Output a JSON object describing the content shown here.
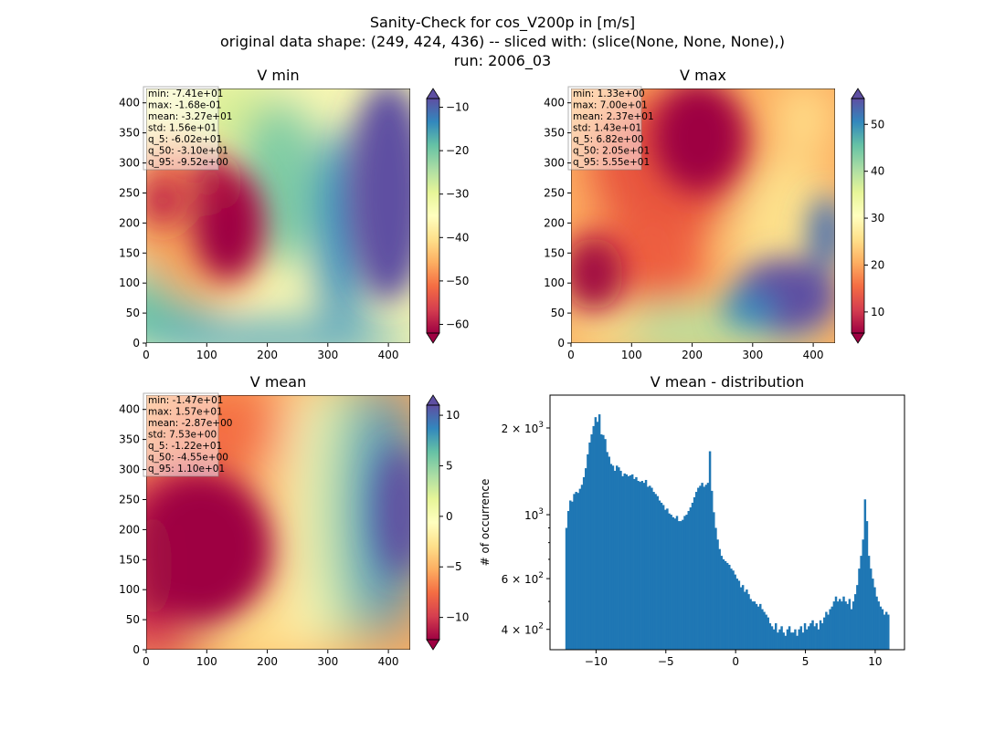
{
  "suptitle": {
    "line1": "Sanity-Check for cos_V200p in [m/s]",
    "line2": "original data shape: (249, 424, 436) -- sliced with: (slice(None, None, None),)",
    "line3": "run: 2006_03"
  },
  "colors": {
    "bar": "#1f77b4",
    "colormap": "Spectral"
  },
  "chart_data": [
    {
      "type": "heatmap",
      "title": "V min",
      "x_ticks": [
        "0",
        "100",
        "200",
        "300",
        "400"
      ],
      "y_ticks": [
        "0",
        "50",
        "100",
        "150",
        "200",
        "250",
        "300",
        "350",
        "400"
      ],
      "xlim": [
        0,
        436
      ],
      "ylim": [
        0,
        424
      ],
      "colorbar": {
        "range": [
          -62,
          -8
        ],
        "ticks": [
          "−60",
          "−50",
          "−40",
          "−30",
          "−20",
          "−10"
        ],
        "tick_values": [
          -60,
          -50,
          -40,
          -30,
          -20,
          -10
        ],
        "extend": "both"
      },
      "stats": [
        "min: -7.41e+01",
        "max: -1.68e-01",
        "mean: -3.27e+01",
        "std: 1.56e+01",
        "q_5: -6.02e+01",
        "q_50: -3.10e+01",
        "q_95: -9.52e+00"
      ]
    },
    {
      "type": "heatmap",
      "title": "V max",
      "x_ticks": [
        "0",
        "100",
        "200",
        "300",
        "400"
      ],
      "y_ticks": [
        "0",
        "50",
        "100",
        "150",
        "200",
        "250",
        "300",
        "350",
        "400"
      ],
      "xlim": [
        0,
        436
      ],
      "ylim": [
        0,
        424
      ],
      "colorbar": {
        "range": [
          5.5,
          55.5
        ],
        "ticks": [
          "10",
          "20",
          "30",
          "40",
          "50"
        ],
        "tick_values": [
          10,
          20,
          30,
          40,
          50
        ],
        "extend": "both"
      },
      "stats": [
        "min: 1.33e+00",
        "max: 7.00e+01",
        "mean: 2.37e+01",
        "std: 1.43e+01",
        "q_5: 6.82e+00",
        "q_50: 2.05e+01",
        "q_95: 5.55e+01"
      ]
    },
    {
      "type": "heatmap",
      "title": "V mean",
      "x_ticks": [
        "0",
        "100",
        "200",
        "300",
        "400"
      ],
      "y_ticks": [
        "0",
        "50",
        "100",
        "150",
        "200",
        "250",
        "300",
        "350",
        "400"
      ],
      "xlim": [
        0,
        436
      ],
      "ylim": [
        0,
        424
      ],
      "colorbar": {
        "range": [
          -12.2,
          11.0
        ],
        "ticks": [
          "−10",
          "−5",
          "0",
          "5",
          "10"
        ],
        "tick_values": [
          -10,
          -5,
          0,
          5,
          10
        ],
        "extend": "both"
      },
      "stats": [
        "min: -1.47e+01",
        "max: 1.57e+01",
        "mean: -2.87e+00",
        "std: 7.53e+00",
        "q_5: -1.22e+01",
        "q_50: -4.55e+00",
        "q_95: 1.10e+01"
      ]
    },
    {
      "type": "bar",
      "title": "V mean - distribution",
      "ylabel": "# of occurrence",
      "y_scale": "log",
      "xlim": [
        -13.3,
        12.1
      ],
      "ylim": [
        340,
        2600
      ],
      "x_ticks": [
        "−10",
        "−5",
        "0",
        "5",
        "10"
      ],
      "x_tick_values": [
        -10,
        -5,
        0,
        5,
        10
      ],
      "y_ticks": [
        {
          "value": 400,
          "base": "4 × 10",
          "exp": "2"
        },
        {
          "value": 600,
          "base": "6 × 10",
          "exp": "2"
        },
        {
          "value": 1000,
          "base": "10",
          "exp": "3"
        },
        {
          "value": 2000,
          "base": "2 × 10",
          "exp": "3"
        }
      ],
      "bin_start": -12.2,
      "bin_end": 11.0,
      "values": [
        900,
        1030,
        1120,
        1110,
        1180,
        1200,
        1190,
        1230,
        1270,
        1350,
        1450,
        1620,
        1780,
        1900,
        2030,
        2180,
        2100,
        2230,
        1900,
        1890,
        1830,
        1650,
        1590,
        1500,
        1480,
        1420,
        1480,
        1460,
        1420,
        1360,
        1390,
        1380,
        1360,
        1370,
        1380,
        1330,
        1350,
        1310,
        1300,
        1310,
        1290,
        1320,
        1250,
        1260,
        1240,
        1200,
        1180,
        1160,
        1120,
        1100,
        1080,
        1040,
        1050,
        1010,
        1000,
        980,
        970,
        990,
        950,
        950,
        960,
        990,
        1000,
        1030,
        1060,
        1100,
        1150,
        1200,
        1240,
        1260,
        1290,
        1250,
        1270,
        1290,
        1660,
        1210,
        1020,
        900,
        820,
        760,
        720,
        700,
        690,
        680,
        670,
        650,
        640,
        620,
        600,
        590,
        560,
        570,
        540,
        550,
        530,
        510,
        500,
        500,
        490,
        480,
        490,
        470,
        460,
        450,
        440,
        420,
        410,
        400,
        420,
        390,
        400,
        410,
        390,
        380,
        400,
        410,
        390,
        390,
        400,
        380,
        400,
        410,
        390,
        420,
        400,
        410,
        420,
        430,
        410,
        420,
        400,
        430,
        420,
        440,
        460,
        450,
        470,
        480,
        500,
        520,
        500,
        510,
        500,
        520,
        500,
        490,
        510,
        470,
        500,
        530,
        570,
        650,
        720,
        820,
        1130,
        950,
        720,
        650,
        600,
        560,
        520,
        500,
        480,
        470,
        450,
        460,
        450
      ]
    }
  ]
}
